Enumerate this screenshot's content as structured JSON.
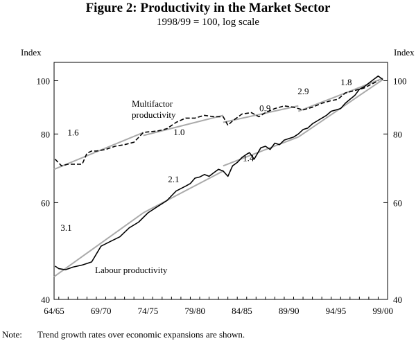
{
  "chart_data": {
    "type": "line",
    "title": "Figure 2: Productivity in the Market Sector",
    "subtitle": "1998/99 = 100, log scale",
    "ylabel_left": "Index",
    "ylabel_right": "Index",
    "y_scale": "log",
    "ylim": [
      40,
      108
    ],
    "yticks": [
      40,
      60,
      80,
      100
    ],
    "xlim": [
      1964.5,
      2000
    ],
    "x_tick_labels": [
      "64/65",
      "69/70",
      "74/75",
      "79/80",
      "84/85",
      "89/90",
      "94/95",
      "99/00"
    ],
    "x_tick_values": [
      1964.5,
      1969.5,
      1974.5,
      1979.5,
      1984.5,
      1989.5,
      1994.5,
      1999.5
    ],
    "grid": false,
    "colors": {
      "actual": "#000000",
      "trend": "#aaaaaa"
    },
    "series": [
      {
        "name": "Multifactor productivity",
        "style": "dashed",
        "x": [
          1964.6,
          1965.3,
          1966.0,
          1966.8,
          1967.5,
          1968.0,
          1968.5,
          1969.0,
          1970.0,
          1971.0,
          1972.0,
          1973.0,
          1974.0,
          1974.5,
          1975.5,
          1976.5,
          1977.5,
          1978.5,
          1979.5,
          1980.5,
          1981.5,
          1982.5,
          1983.0,
          1983.5,
          1984.5,
          1985.5,
          1986.3,
          1987.0,
          1988.0,
          1989.0,
          1990.0,
          1991.0,
          1992.0,
          1993.0,
          1994.0,
          1994.7,
          1995.5,
          1996.5,
          1997.5,
          1998.5,
          1999.0
        ],
        "values": [
          72.0,
          70.0,
          70.5,
          70.5,
          70.5,
          73.8,
          74.5,
          74.5,
          75.0,
          76.0,
          76.5,
          77.3,
          80.5,
          80.7,
          81.0,
          81.8,
          84.0,
          85.5,
          85.5,
          86.5,
          86.0,
          86.0,
          83.0,
          84.5,
          87.0,
          87.5,
          86.0,
          87.5,
          89.0,
          90.0,
          89.5,
          88.5,
          89.5,
          91.0,
          92.0,
          92.5,
          95.0,
          96.0,
          97.0,
          99.0,
          100.0
        ]
      },
      {
        "name": "Labour productivity",
        "style": "solid",
        "x": [
          1964.6,
          1965.0,
          1965.7,
          1966.5,
          1967.5,
          1968.5,
          1969.5,
          1970.5,
          1971.5,
          1972.5,
          1973.5,
          1974.5,
          1975.5,
          1976.5,
          1977.5,
          1978.5,
          1979.0,
          1979.5,
          1980.0,
          1980.5,
          1981.0,
          1981.5,
          1982.0,
          1982.5,
          1983.0,
          1983.5,
          1984.0,
          1984.5,
          1985.0,
          1985.3,
          1985.8,
          1986.5,
          1987.0,
          1987.5,
          1988.0,
          1988.5,
          1989.0,
          1989.5,
          1990.0,
          1990.5,
          1991.0,
          1991.5,
          1992.0,
          1992.5,
          1993.0,
          1993.5,
          1994.0,
          1994.5,
          1995.0,
          1995.5,
          1996.0,
          1996.5,
          1997.0,
          1997.5,
          1998.0,
          1998.5,
          1999.0,
          1999.5
        ],
        "values": [
          46.0,
          45.5,
          45.3,
          45.8,
          46.2,
          46.8,
          50.0,
          51.0,
          52.0,
          54.0,
          55.3,
          57.5,
          59.0,
          60.5,
          63.0,
          64.3,
          65.0,
          66.5,
          66.8,
          67.5,
          67.0,
          68.0,
          69.0,
          68.5,
          67.0,
          70.0,
          71.0,
          72.5,
          73.5,
          74.0,
          72.0,
          75.5,
          76.0,
          75.0,
          77.0,
          76.5,
          78.0,
          78.5,
          79.0,
          80.0,
          81.5,
          82.0,
          83.5,
          84.5,
          85.5,
          86.5,
          88.0,
          88.5,
          89.0,
          91.0,
          92.5,
          94.0,
          96.5,
          97.5,
          99.0,
          100.5,
          102.0,
          100.5
        ]
      }
    ],
    "trends": [
      {
        "series": "Multifactor productivity",
        "rate": "1.6",
        "x": [
          1964.5,
          1974.0
        ],
        "values": [
          69.0,
          80.5
        ]
      },
      {
        "series": "Multifactor productivity",
        "rate": "1.0",
        "x": [
          1974.0,
          1982.5
        ],
        "values": [
          79.5,
          86.5
        ]
      },
      {
        "series": "Multifactor productivity",
        "rate": "0.9",
        "x": [
          1982.5,
          1990.5
        ],
        "values": [
          84.0,
          90.0
        ]
      },
      {
        "series": "Multifactor productivity",
        "rate": "1.8",
        "x": [
          1990.5,
          1999.5
        ],
        "values": [
          88.0,
          101.0
        ]
      },
      {
        "series": "Labour productivity",
        "rate": "3.1",
        "x": [
          1964.5,
          1974.0
        ],
        "values": [
          44.0,
          57.5
        ]
      },
      {
        "series": "Labour productivity",
        "rate": "2.1",
        "x": [
          1974.0,
          1982.5
        ],
        "values": [
          57.5,
          68.5
        ]
      },
      {
        "series": "Labour productivity",
        "rate": "1.4",
        "x": [
          1982.5,
          1990.5
        ],
        "values": [
          70.0,
          79.0
        ]
      },
      {
        "series": "Labour productivity",
        "rate": "2.9",
        "x": [
          1990.5,
          1999.5
        ],
        "values": [
          79.0,
          100.5
        ]
      }
    ],
    "annotations": {
      "mfp_label_line1": "Multifactor",
      "mfp_label_line2": "productivity",
      "lp_label": "Labour productivity"
    }
  },
  "note": {
    "label": "Note:",
    "text": "Trend growth rates over economic expansions are shown."
  }
}
